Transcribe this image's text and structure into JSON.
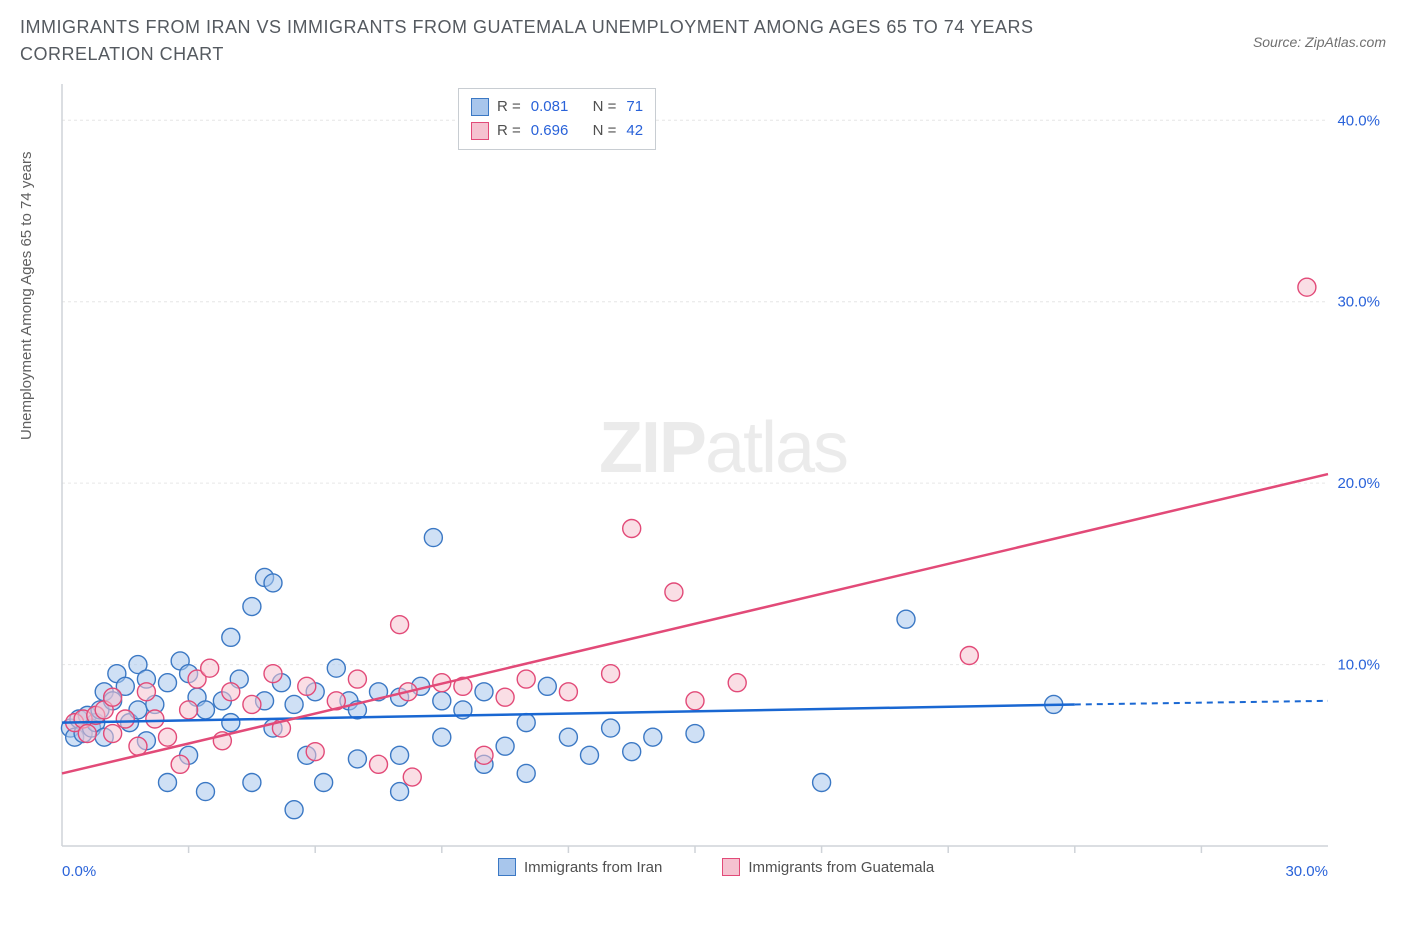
{
  "title": "IMMIGRANTS FROM IRAN VS IMMIGRANTS FROM GUATEMALA UNEMPLOYMENT AMONG AGES 65 TO 74 YEARS CORRELATION CHART",
  "source": "Source: ZipAtlas.com",
  "y_axis_label": "Unemployment Among Ages 65 to 74 years",
  "watermark_bold": "ZIP",
  "watermark_light": "atlas",
  "colors": {
    "blue_fill": "#a8c6ec",
    "blue_stroke": "#3b78c4",
    "pink_fill": "#f5c2d0",
    "pink_stroke": "#e24a78",
    "grid": "#e6e6e6",
    "axis": "#cfd3d8",
    "tick_text": "#2962d9",
    "label_text": "#606060",
    "trend_blue": "#1967d2",
    "trend_pink": "#e24a78"
  },
  "legend": {
    "series": [
      {
        "name": "Immigrants from Iran",
        "color_key": "blue",
        "R": "0.081",
        "N": "71"
      },
      {
        "name": "Immigrants from Guatemala",
        "color_key": "pink",
        "R": "0.696",
        "N": "42"
      }
    ],
    "R_label": "R =",
    "N_label": "N ="
  },
  "axes": {
    "xlim": [
      0,
      30
    ],
    "ylim": [
      0,
      42
    ],
    "x_ticks": [
      0,
      30
    ],
    "x_tick_labels": [
      "0.0%",
      "30.0%"
    ],
    "x_minor_ticks": [
      3,
      6,
      9,
      12,
      15,
      18,
      21,
      24,
      27
    ],
    "y_ticks": [
      10,
      20,
      30,
      40
    ],
    "y_tick_labels": [
      "10.0%",
      "20.0%",
      "30.0%",
      "40.0%"
    ]
  },
  "trend_lines": {
    "blue": {
      "x1": 0,
      "y1": 6.8,
      "x2": 24,
      "y2": 7.8,
      "dash_x2": 30,
      "dash_y2": 8.0
    },
    "pink": {
      "x1": 0,
      "y1": 4.0,
      "x2": 30,
      "y2": 20.5
    }
  },
  "points_blue": [
    [
      0.2,
      6.5
    ],
    [
      0.3,
      6.0
    ],
    [
      0.4,
      7.0
    ],
    [
      0.5,
      6.2
    ],
    [
      0.6,
      7.2
    ],
    [
      0.7,
      6.5
    ],
    [
      0.8,
      6.8
    ],
    [
      0.9,
      7.5
    ],
    [
      1.0,
      6.0
    ],
    [
      1.0,
      8.5
    ],
    [
      1.2,
      8.0
    ],
    [
      1.3,
      9.5
    ],
    [
      1.5,
      8.8
    ],
    [
      1.6,
      6.8
    ],
    [
      1.8,
      10.0
    ],
    [
      1.8,
      7.5
    ],
    [
      2.0,
      5.8
    ],
    [
      2.0,
      9.2
    ],
    [
      2.2,
      7.8
    ],
    [
      2.5,
      3.5
    ],
    [
      2.5,
      9.0
    ],
    [
      2.8,
      10.2
    ],
    [
      3.0,
      5.0
    ],
    [
      3.0,
      9.5
    ],
    [
      3.2,
      8.2
    ],
    [
      3.4,
      7.5
    ],
    [
      3.4,
      3.0
    ],
    [
      3.8,
      8.0
    ],
    [
      4.0,
      6.8
    ],
    [
      4.0,
      11.5
    ],
    [
      4.2,
      9.2
    ],
    [
      4.5,
      13.2
    ],
    [
      4.5,
      3.5
    ],
    [
      4.8,
      14.8
    ],
    [
      4.8,
      8.0
    ],
    [
      5.0,
      6.5
    ],
    [
      5.0,
      14.5
    ],
    [
      5.2,
      9.0
    ],
    [
      5.5,
      7.8
    ],
    [
      5.5,
      2.0
    ],
    [
      5.8,
      5.0
    ],
    [
      6.0,
      8.5
    ],
    [
      6.2,
      3.5
    ],
    [
      6.5,
      9.8
    ],
    [
      6.8,
      8.0
    ],
    [
      7.0,
      7.5
    ],
    [
      7.0,
      4.8
    ],
    [
      7.5,
      8.5
    ],
    [
      8.0,
      5.0
    ],
    [
      8.0,
      8.2
    ],
    [
      8.0,
      3.0
    ],
    [
      8.5,
      8.8
    ],
    [
      8.8,
      17.0
    ],
    [
      9.0,
      6.0
    ],
    [
      9.0,
      8.0
    ],
    [
      9.5,
      7.5
    ],
    [
      10.0,
      8.5
    ],
    [
      10.0,
      4.5
    ],
    [
      10.5,
      5.5
    ],
    [
      11.0,
      6.8
    ],
    [
      11.0,
      4.0
    ],
    [
      11.5,
      8.8
    ],
    [
      12.0,
      6.0
    ],
    [
      12.5,
      5.0
    ],
    [
      13.0,
      6.5
    ],
    [
      13.5,
      5.2
    ],
    [
      14.0,
      6.0
    ],
    [
      15.0,
      6.2
    ],
    [
      18.0,
      3.5
    ],
    [
      20.0,
      12.5
    ],
    [
      23.5,
      7.8
    ]
  ],
  "points_pink": [
    [
      0.3,
      6.8
    ],
    [
      0.5,
      7.0
    ],
    [
      0.6,
      6.2
    ],
    [
      0.8,
      7.2
    ],
    [
      1.0,
      7.5
    ],
    [
      1.2,
      8.2
    ],
    [
      1.2,
      6.2
    ],
    [
      1.5,
      7.0
    ],
    [
      1.8,
      5.5
    ],
    [
      2.0,
      8.5
    ],
    [
      2.2,
      7.0
    ],
    [
      2.5,
      6.0
    ],
    [
      2.8,
      4.5
    ],
    [
      3.0,
      7.5
    ],
    [
      3.2,
      9.2
    ],
    [
      3.5,
      9.8
    ],
    [
      3.8,
      5.8
    ],
    [
      4.0,
      8.5
    ],
    [
      4.5,
      7.8
    ],
    [
      5.0,
      9.5
    ],
    [
      5.2,
      6.5
    ],
    [
      5.8,
      8.8
    ],
    [
      6.0,
      5.2
    ],
    [
      6.5,
      8.0
    ],
    [
      7.0,
      9.2
    ],
    [
      7.5,
      4.5
    ],
    [
      8.0,
      12.2
    ],
    [
      8.2,
      8.5
    ],
    [
      8.3,
      3.8
    ],
    [
      9.0,
      9.0
    ],
    [
      9.5,
      8.8
    ],
    [
      10.0,
      5.0
    ],
    [
      10.5,
      8.2
    ],
    [
      11.0,
      9.2
    ],
    [
      12.0,
      8.5
    ],
    [
      13.0,
      9.5
    ],
    [
      13.5,
      17.5
    ],
    [
      14.5,
      14.0
    ],
    [
      15.0,
      8.0
    ],
    [
      16.0,
      9.0
    ],
    [
      21.5,
      10.5
    ],
    [
      29.5,
      30.8
    ]
  ]
}
